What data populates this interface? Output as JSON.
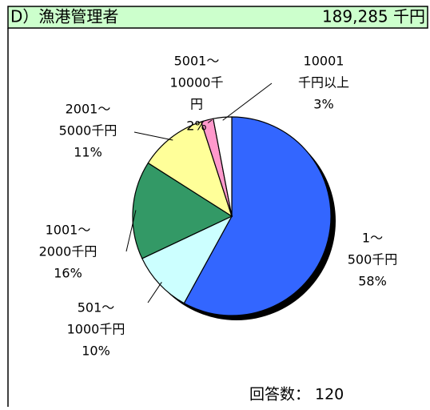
{
  "chart_data": {
    "type": "pie",
    "title": "D）漁港管理者",
    "total": "189,285 千円",
    "categories": [
      [
        "1～",
        "500千円"
      ],
      [
        "501～",
        "1000千円"
      ],
      [
        "1001～",
        "2000千円"
      ],
      [
        "2001～",
        "5000千円"
      ],
      [
        "5001～",
        "10000千",
        "円"
      ],
      [
        "10001",
        "千円以上"
      ]
    ],
    "values": [
      58,
      10,
      16,
      11,
      2,
      3
    ],
    "value_labels": [
      "58%",
      "10%",
      "16%",
      "11%",
      "2%",
      "3%"
    ],
    "colors": [
      "#3366ff",
      "#ccffff",
      "#339966",
      "#ffff99",
      "#ff99cc",
      "#ffffff"
    ],
    "n_label": "回答数：",
    "n": 120
  }
}
